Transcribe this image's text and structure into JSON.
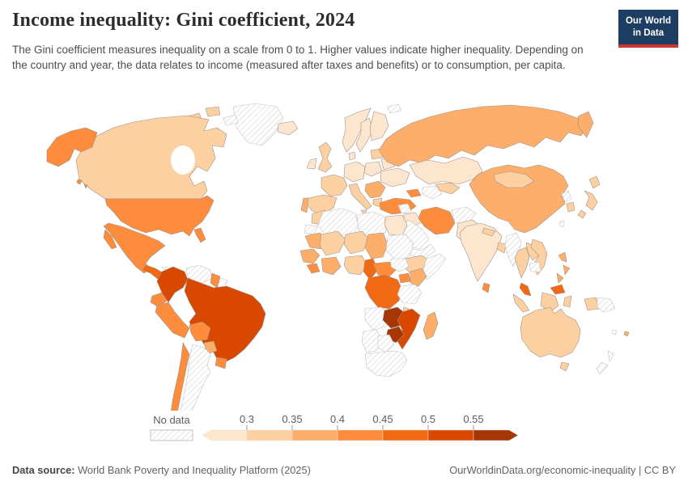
{
  "header": {
    "title": "Income inequality: Gini coefficient, 2024",
    "subtitle": "The Gini coefficient measures inequality on a scale from 0 to 1. Higher values indicate higher inequality. Depending on the country and year, the data relates to income (measured after taxes and benefits) or to consumption, per capita.",
    "logo": {
      "line1": "Our World",
      "line2": "in Data",
      "bg_color": "#1d3d63",
      "accent_color": "#cd3731"
    }
  },
  "legend": {
    "no_data_label": "No data",
    "tick_labels": [
      "0.3",
      "0.35",
      "0.4",
      "0.45",
      "0.5",
      "0.55"
    ],
    "bin_colors": [
      "#fee6ce",
      "#fdd0a2",
      "#fdae6b",
      "#fd8d3c",
      "#f16913",
      "#d94801",
      "#a63603"
    ]
  },
  "footer": {
    "source_label": "Data source:",
    "source_text": " World Bank Poverty and Inequality Platform (2025)",
    "right_text": "OurWorldinData.org/economic-inequality | CC BY"
  },
  "map": {
    "border_color": "#9c938c",
    "nodata_stroke": "#c2c2c2",
    "ocean": "#ffffff",
    "country_bins": {
      "greenland": "nodata",
      "canadian-arctic": 1,
      "arctic-hatched": "nodata",
      "canada": 1,
      "alaska": 3,
      "usa": 3,
      "hawaii": 3,
      "mexico": 3,
      "central-america": 4,
      "cuba": "nodata",
      "hispaniola": 3,
      "colombia": 5,
      "venezuela": "nodata",
      "guyana": 3,
      "suriname": "nodata",
      "ecuador": 3,
      "peru": 3,
      "brazil": 5,
      "bolivia": 3,
      "paraguay": 2,
      "uruguay": 3,
      "argentina": "nodata",
      "chile": 3,
      "iceland": 0,
      "norway": 0,
      "sweden": 0,
      "finland": 0,
      "denmark": 0,
      "uk": 1,
      "ireland": 0,
      "france": 1,
      "spain": 1,
      "portugal": 2,
      "central-europe": 0,
      "poland": 0,
      "baltics": 1,
      "belarus": 0,
      "ukraine": 0,
      "italy": 1,
      "balkans": 2,
      "greece": 1,
      "turkey": 3,
      "svalbard": "nodata",
      "russia": 2,
      "kazakhstan": 0,
      "uzbekistan": 1,
      "turkmenistan": "nodata",
      "caucasus": 3,
      "syria": "nodata",
      "iraq": 0,
      "iran": 3,
      "saudi-arabia": "nodata",
      "yemen-oman": "nodata",
      "afghanistan": "nodata",
      "pakistan": 0,
      "india": 0,
      "nepal": 1,
      "bangladesh": 1,
      "sri-lanka": 3,
      "china": 2,
      "mongolia": 1,
      "north-korea": "nodata",
      "south-korea": 1,
      "japan": 1,
      "taiwan": "nodata",
      "myanmar": "nodata",
      "thailand": 1,
      "laos": 1,
      "vietnam": 1,
      "cambodia": "nodata",
      "malaysia": 4,
      "malaysia-borneo": 4,
      "philippines": 2,
      "indonesia": 1,
      "papua-new-guinea": "nodata",
      "morocco": 1,
      "western-sahara": "nodata",
      "algeria": "nodata",
      "libya": "nodata",
      "egypt": 0,
      "mauritania": 2,
      "mali": 1,
      "niger": 1,
      "chad": 2,
      "sudan": "nodata",
      "ethiopia": 1,
      "somalia": "nodata",
      "senegal-guinea": 2,
      "sierra-leone-liberia": 3,
      "cote-divoire-ghana": 2,
      "nigeria": 1,
      "cameroon": 4,
      "central-african-republic": 3,
      "south-sudan": "nodata",
      "uganda": 3,
      "kenya": 2,
      "drc": 4,
      "tanzania": "nodata",
      "angola": "nodata",
      "zambia": 6,
      "malawi": 1,
      "mozambique": 5,
      "zimbabwe": 6,
      "madagascar": 2,
      "namibia": "nodata",
      "botswana": "nodata",
      "south-africa": "nodata",
      "australia": 1,
      "tasmania": 1,
      "new-zealand": "nodata",
      "fiji": 2,
      "vanuatu": "nodata"
    }
  },
  "chart_data": {
    "type": "heatmap",
    "subtype": "choropleth-world-map",
    "title": "Income inequality: Gini coefficient, 2024",
    "subtitle": "The Gini coefficient measures inequality on a scale from 0 to 1. Higher values indicate higher inequality. Depending on the country and year, the data relates to income (measured after taxes and benefits) or to consumption, per capita.",
    "unit": "Gini coefficient (scale 0 to 1)",
    "legend_position": "bottom",
    "tick_values": [
      0.3,
      0.35,
      0.4,
      0.45,
      0.5,
      0.55
    ],
    "bins": [
      {
        "range": "<0.3",
        "color": "#fee6ce"
      },
      {
        "range": "0.3–0.35",
        "color": "#fdd0a2"
      },
      {
        "range": "0.35–0.4",
        "color": "#fdae6b"
      },
      {
        "range": "0.4–0.45",
        "color": "#fd8d3c"
      },
      {
        "range": "0.45–0.5",
        "color": "#f16913"
      },
      {
        "range": "0.5–0.55",
        "color": "#d94801"
      },
      {
        "range": ">0.55",
        "color": "#a63603"
      }
    ],
    "no_data": {
      "label": "No data",
      "pattern": "diagonal-hatch"
    },
    "countries": {
      "Canada": "0.3–0.35",
      "United States": "0.4–0.45",
      "Mexico": "0.4–0.45",
      "Greenland": "No data",
      "Cuba": "No data",
      "Honduras/Guatemala": "0.45–0.5",
      "Colombia": "0.5–0.55",
      "Venezuela": "No data",
      "Guyana": "0.4–0.45",
      "Ecuador": "0.4–0.45",
      "Peru": "0.4–0.45",
      "Brazil": "0.5–0.55",
      "Bolivia": "0.4–0.45",
      "Paraguay": "0.35–0.4",
      "Uruguay": "0.4–0.45",
      "Chile": "0.4–0.45",
      "Argentina": "No data",
      "Iceland": "<0.3",
      "Norway": "<0.3",
      "Sweden": "<0.3",
      "Finland": "<0.3",
      "Ireland": "<0.3",
      "United Kingdom": "0.3–0.35",
      "France": "0.3–0.35",
      "Spain": "0.3–0.35",
      "Portugal": "0.35–0.4",
      "Germany": "<0.3",
      "Poland": "<0.3",
      "Ukraine": "<0.3",
      "Italy": "0.3–0.35",
      "Balkans": "0.35–0.4",
      "Greece": "0.3–0.35",
      "Turkey": "0.4–0.45",
      "Russia": "0.35–0.4",
      "Kazakhstan": "<0.3",
      "Uzbekistan": "0.3–0.35",
      "Turkmenistan": "No data",
      "Iran": "0.4–0.45",
      "Iraq": "<0.3",
      "Syria": "No data",
      "Saudi Arabia": "No data",
      "Yemen": "No data",
      "Afghanistan": "No data",
      "Pakistan": "<0.3",
      "India": "<0.3",
      "Nepal": "0.3–0.35",
      "Bangladesh": "0.3–0.35",
      "Sri Lanka": "0.4–0.45",
      "China": "0.35–0.4",
      "Mongolia": "0.3–0.35",
      "Japan": "0.3–0.35",
      "South Korea": "0.3–0.35",
      "North Korea": "No data",
      "Myanmar": "No data",
      "Thailand": "0.3–0.35",
      "Laos": "0.3–0.35",
      "Vietnam": "0.3–0.35",
      "Cambodia": "No data",
      "Malaysia": "0.45–0.5",
      "Philippines": "0.35–0.4",
      "Indonesia": "0.3–0.35",
      "Papua New Guinea": "No data",
      "Australia": "0.3–0.35",
      "New Zealand": "No data",
      "Morocco": "0.3–0.35",
      "Algeria": "No data",
      "Libya": "No data",
      "Egypt": "<0.3",
      "Mauritania": "0.35–0.4",
      "Mali": "0.3–0.35",
      "Niger": "0.3–0.35",
      "Chad": "0.35–0.4",
      "Sudan": "No data",
      "Ethiopia": "0.3–0.35",
      "Somalia": "No data",
      "Nigeria": "0.3–0.35",
      "Cameroon": "0.45–0.5",
      "Central African Republic": "0.4–0.45",
      "South Sudan": "No data",
      "Uganda": "0.4–0.45",
      "Kenya": "0.35–0.4",
      "Democratic Republic of Congo": "0.45–0.5",
      "Tanzania": "No data",
      "Angola": "No data",
      "Zambia": ">0.55",
      "Zimbabwe": ">0.55",
      "Malawi": "0.3–0.35",
      "Mozambique": "0.5–0.55",
      "Madagascar": "0.35–0.4",
      "Namibia": "No data",
      "Botswana": "No data",
      "South Africa": "No data"
    }
  }
}
